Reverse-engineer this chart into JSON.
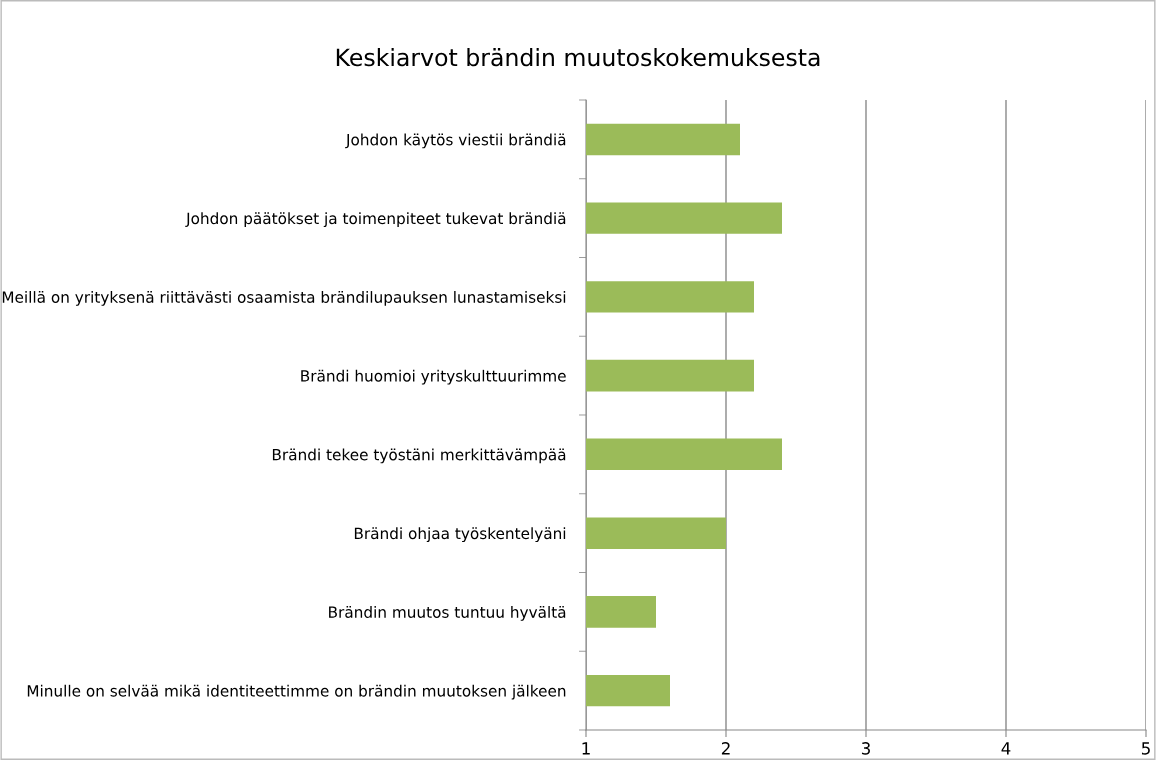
{
  "chart_data": {
    "type": "bar",
    "orientation": "horizontal",
    "title": "Keskiarvot brändin muutoskokemuksesta",
    "categories": [
      "Johdon käytös viestii brändiä",
      "Johdon päätökset ja toimenpiteet tukevat brändiä",
      "Meillä on yrityksenä riittävästi osaamista brändilupauksen lunastamiseksi",
      "Brändi huomioi yrityskulttuurimme",
      "Brändi tekee työstäni merkittävämpää",
      "Brändi ohjaa työskentelyäni",
      "Brändin muutos tuntuu hyvältä",
      "Minulle on selvää mikä identiteettimme on brändin muutoksen jälkeen"
    ],
    "values": [
      2.1,
      2.4,
      2.2,
      2.2,
      2.4,
      2.0,
      1.5,
      1.6
    ],
    "color": "#9bbb59",
    "xlim": [
      1,
      5
    ],
    "xticks": [
      1,
      2,
      3,
      4,
      5
    ],
    "grid": "x"
  }
}
